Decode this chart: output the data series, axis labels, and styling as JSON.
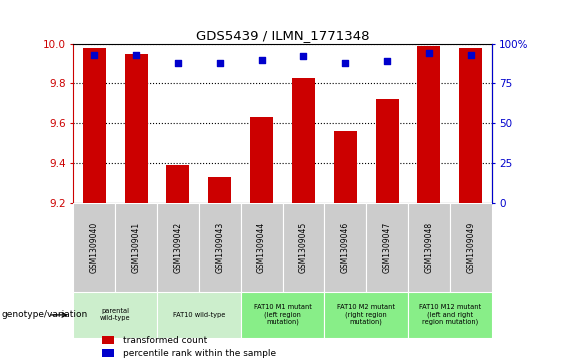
{
  "title": "GDS5439 / ILMN_1771348",
  "samples": [
    "GSM1309040",
    "GSM1309041",
    "GSM1309042",
    "GSM1309043",
    "GSM1309044",
    "GSM1309045",
    "GSM1309046",
    "GSM1309047",
    "GSM1309048",
    "GSM1309049"
  ],
  "transformed_count": [
    9.98,
    9.95,
    9.39,
    9.33,
    9.63,
    9.83,
    9.56,
    9.72,
    9.99,
    9.98
  ],
  "percentile_rank": [
    93,
    93,
    88,
    88,
    90,
    92,
    88,
    89,
    94,
    93
  ],
  "ylim": [
    9.2,
    10.0
  ],
  "yticks_left": [
    9.2,
    9.4,
    9.6,
    9.8,
    10.0
  ],
  "yticks_right": [
    0,
    25,
    50,
    75,
    100
  ],
  "bar_color": "#cc0000",
  "dot_color": "#0000cc",
  "bg_color": "#ffffff",
  "sample_bg_color": "#cccccc",
  "genotype_groups": [
    {
      "label": "parental\nwild-type",
      "start": 0,
      "end": 2,
      "color": "#cceecc"
    },
    {
      "label": "FAT10 wild-type",
      "start": 2,
      "end": 4,
      "color": "#cceecc"
    },
    {
      "label": "FAT10 M1 mutant\n(left region\nmutation)",
      "start": 4,
      "end": 6,
      "color": "#88ee88"
    },
    {
      "label": "FAT10 M2 mutant\n(right region\nmutation)",
      "start": 6,
      "end": 8,
      "color": "#88ee88"
    },
    {
      "label": "FAT10 M12 mutant\n(left and right\nregion mutation)",
      "start": 8,
      "end": 10,
      "color": "#88ee88"
    }
  ],
  "legend_items": [
    {
      "color": "#cc0000",
      "label": "transformed count"
    },
    {
      "color": "#0000cc",
      "label": "percentile rank within the sample"
    }
  ],
  "genotype_label": "genotype/variation"
}
